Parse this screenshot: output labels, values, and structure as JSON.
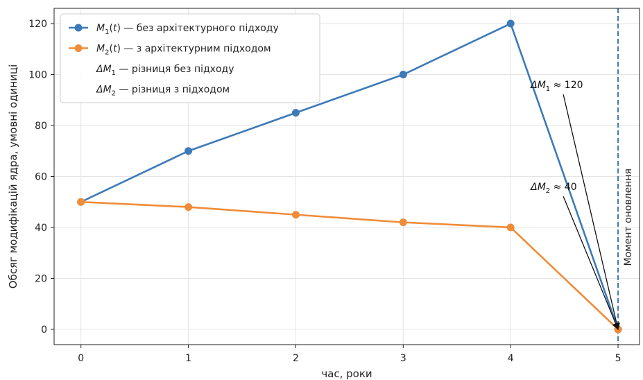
{
  "chart_data": {
    "type": "line",
    "xlabel": "час, роки",
    "ylabel": "Обсяг модифікацій ядра, умовні одиниці",
    "x": [
      0,
      1,
      2,
      3,
      4,
      5
    ],
    "xlim": [
      -0.25,
      5.2
    ],
    "ylim": [
      -6,
      126
    ],
    "xticks": [
      0,
      1,
      2,
      3,
      4,
      5
    ],
    "yticks": [
      0,
      20,
      40,
      60,
      80,
      100,
      120
    ],
    "grid": true,
    "legend_position": "top-left",
    "series": [
      {
        "name": "M1(t) — без архітектурного підходу",
        "name_var": "M",
        "name_sub": "1",
        "name_arg": "(t)",
        "name_rest": " — без архітектурного підходу",
        "color": "#3d7ab8",
        "values": [
          50,
          70,
          85,
          100,
          120,
          0
        ]
      },
      {
        "name": "M2(t) — з архітектурним підходом",
        "name_var": "M",
        "name_sub": "2",
        "name_arg": "(t)",
        "name_rest": " — з архітектурним підходом",
        "color": "#f08c38",
        "values": [
          50,
          48,
          45,
          42,
          40,
          0
        ]
      }
    ],
    "legend_extra": [
      {
        "var": "ΔM",
        "sub": "1",
        "rest": " — різниця без підходу"
      },
      {
        "var": "ΔM",
        "sub": "2",
        "rest": " — різниця з підходом"
      }
    ],
    "vline": {
      "x": 5,
      "label": "Момент оновлення",
      "color": "#3d7ab8"
    },
    "annotations": [
      {
        "var": "ΔM",
        "sub": "1",
        "rest": " ≈ 120",
        "text_x": 4.2,
        "text_y": 96,
        "arrow_to_x": 5,
        "arrow_to_y": 0
      },
      {
        "var": "ΔM",
        "sub": "2",
        "rest": " ≈ 40",
        "text_x": 4.2,
        "text_y": 56,
        "arrow_to_x": 5,
        "arrow_to_y": 0
      }
    ]
  }
}
